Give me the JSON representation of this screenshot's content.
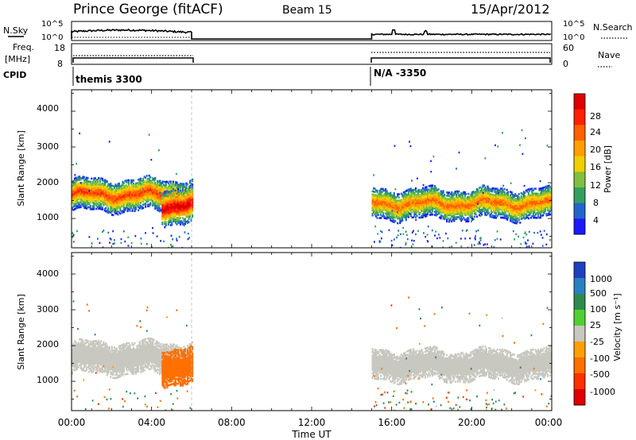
{
  "header": {
    "station": "Prince George (fitACF)",
    "beam": "Beam 15",
    "date": "15/Apr/2012"
  },
  "top_panels": {
    "nsky_label": "N.Sky",
    "nsky_ticks": [
      "10^5",
      "10^0"
    ],
    "nsearch_label": "N.Search",
    "nsearch_ticks": [
      "10^5",
      "10^0"
    ],
    "freq_label": "Freq.",
    "freq_unit": "[MHz]",
    "freq_ticks": [
      "18",
      "8"
    ],
    "nave_label": "Nave",
    "nave_ticks": [
      "60",
      "0"
    ],
    "cpid_label": "CPID",
    "cpid_segments": [
      {
        "text": "themis 3300",
        "start_hour": 0,
        "end_hour": 6
      },
      {
        "text": "N/A -3350",
        "start_hour": 15,
        "end_hour": 24
      }
    ]
  },
  "x_axis": {
    "label": "Time UT",
    "ticks": [
      "00:00",
      "04:00",
      "08:00",
      "12:00",
      "16:00",
      "20:00",
      "00:00"
    ]
  },
  "power_panel": {
    "ylabel": "Slant Range [km]",
    "yticks": [
      "4000",
      "3000",
      "2000",
      "1000"
    ],
    "colorbar_label": "Power [dB]",
    "colorbar_ticks": [
      "28",
      "24",
      "20",
      "16",
      "12",
      "8",
      "4"
    ],
    "colors": [
      "#1a1aff",
      "#2266cc",
      "#33a060",
      "#80c040",
      "#f0d000",
      "#ffa000",
      "#ff6000",
      "#ff2000",
      "#e00000"
    ]
  },
  "velocity_panel": {
    "ylabel": "Slant Range [km]",
    "yticks": [
      "4000",
      "3000",
      "2000",
      "1000"
    ],
    "colorbar_label": "Velocity [m s⁻¹]",
    "colorbar_ticks": [
      "1000",
      "500",
      "100",
      "25",
      "-25",
      "-100",
      "-500",
      "-1000"
    ],
    "colors": [
      "#1e40c0",
      "#2a80c0",
      "#2e8a50",
      "#50d030",
      "#c8c8c0",
      "#ffa000",
      "#ff7000",
      "#ff3000",
      "#e00000"
    ]
  },
  "chart_data": [
    {
      "type": "heatmap",
      "title": "Power [dB]",
      "xlabel": "Time UT",
      "ylabel": "Slant Range [km]",
      "xlim_hours": [
        0,
        24
      ],
      "ylim": [
        180,
        4600
      ],
      "zlim": [
        0,
        30
      ],
      "echo_bands": [
        {
          "start_hour": 0.0,
          "end_hour": 6.0,
          "center_km": 1650,
          "width_km": 450,
          "peak_db": 24
        },
        {
          "start_hour": 4.5,
          "end_hour": 6.0,
          "center_km": 1350,
          "width_km": 500,
          "peak_db": 30
        },
        {
          "start_hour": 15.0,
          "end_hour": 24.0,
          "center_km": 1400,
          "width_km": 420,
          "peak_db": 22
        }
      ]
    },
    {
      "type": "heatmap",
      "title": "Velocity [m s⁻¹]",
      "xlabel": "Time UT",
      "ylabel": "Slant Range [km]",
      "xlim_hours": [
        0,
        24
      ],
      "ylim": [
        180,
        4600
      ],
      "zlim": [
        -1000,
        1000
      ],
      "echo_bands": [
        {
          "start_hour": 0.0,
          "end_hour": 6.0,
          "center_km": 1650,
          "width_km": 450,
          "typical_velocity": 0
        },
        {
          "start_hour": 4.5,
          "end_hour": 6.0,
          "center_km": 1400,
          "width_km": 500,
          "typical_velocity": -300
        },
        {
          "start_hour": 15.0,
          "end_hour": 24.0,
          "center_km": 1450,
          "width_km": 420,
          "typical_velocity": 0
        }
      ]
    }
  ]
}
